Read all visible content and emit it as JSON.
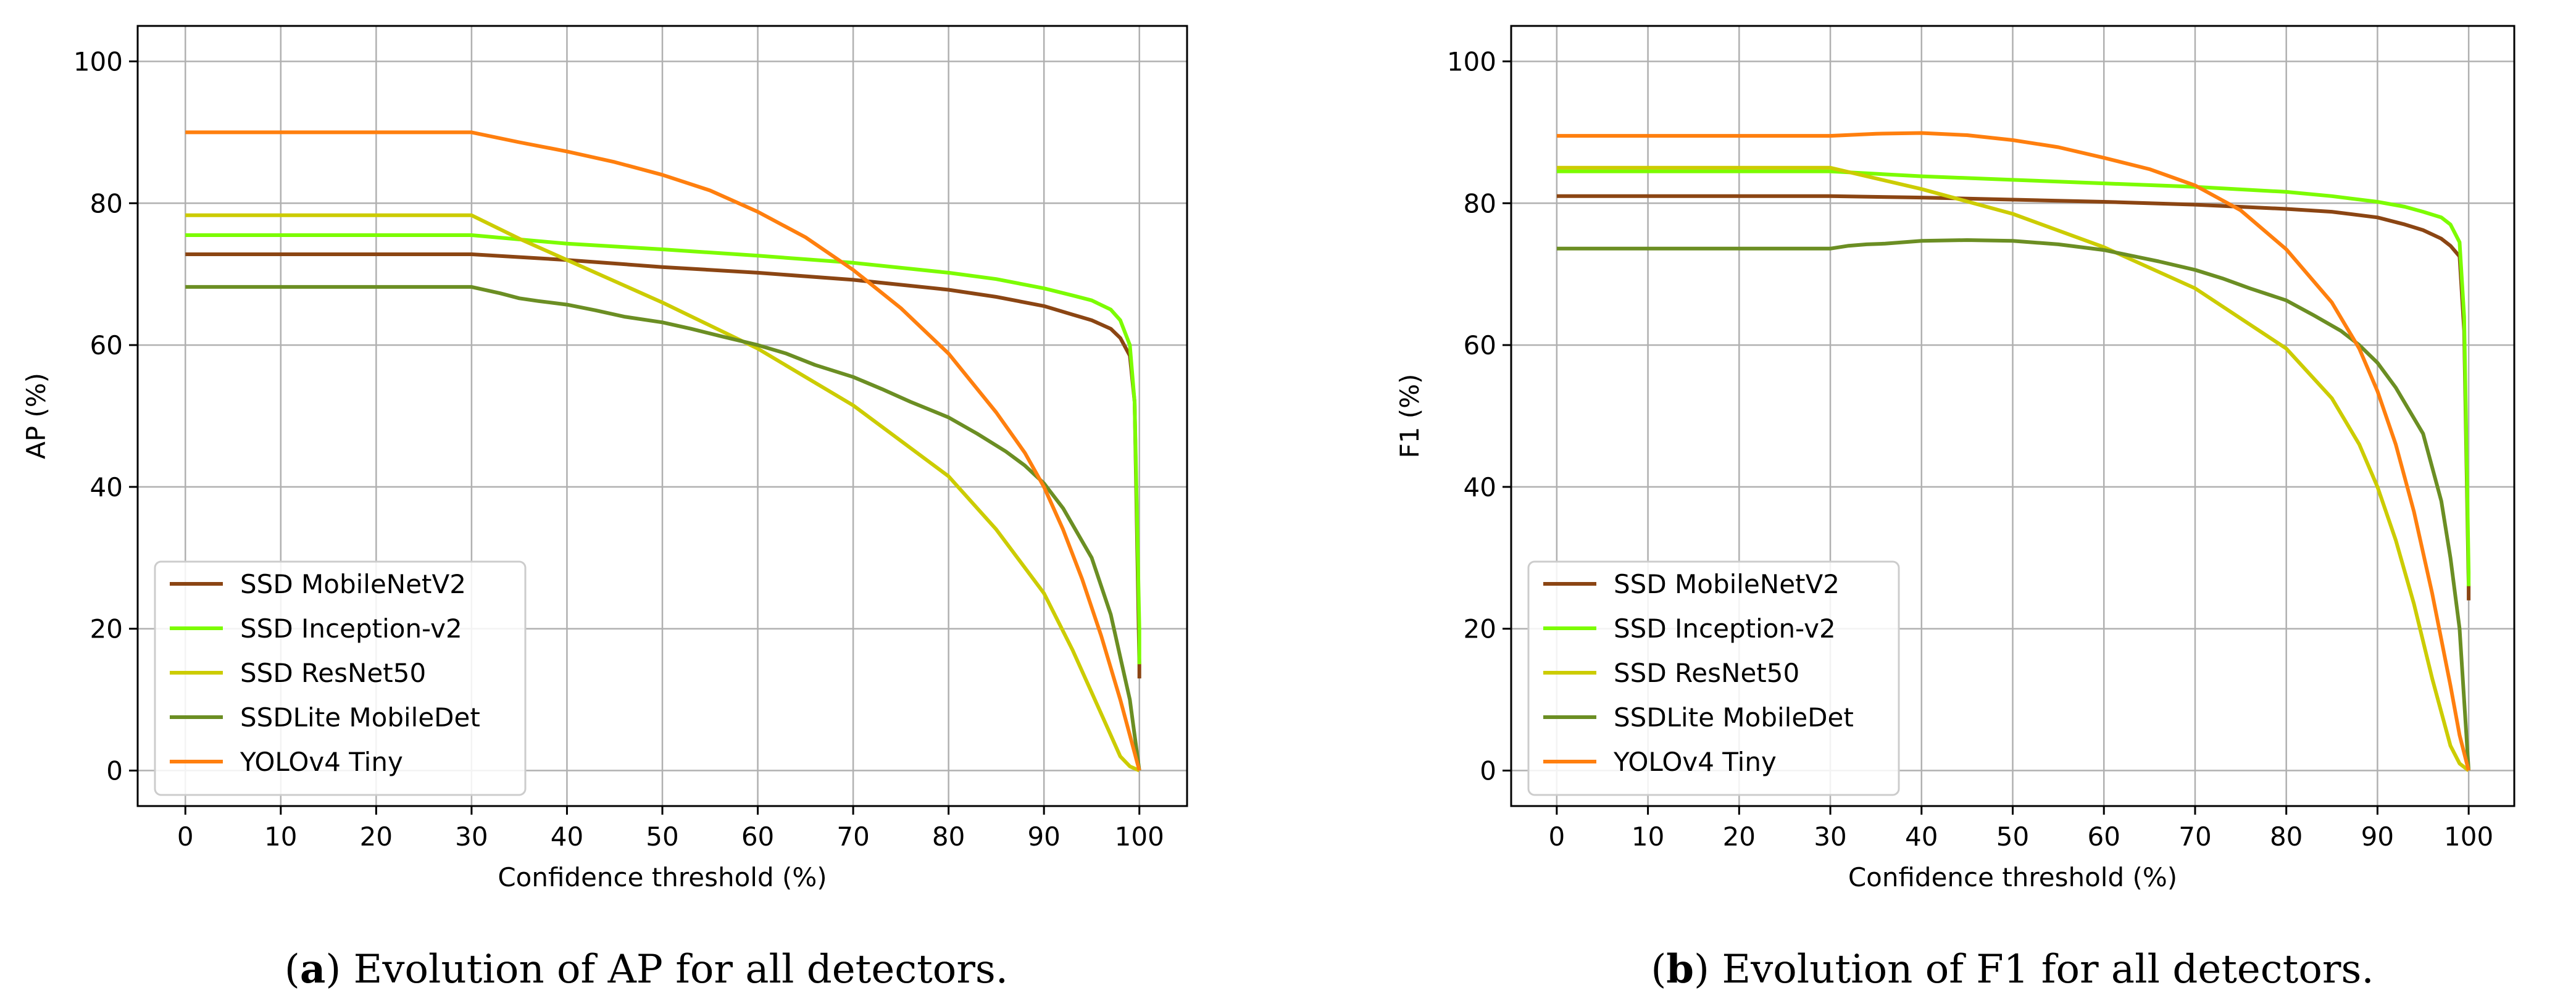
{
  "chart_data": [
    {
      "type": "line",
      "ylabel": "AP (%)",
      "xlabel": "Confidence threshold (%)",
      "xlim": [
        -5,
        105
      ],
      "ylim": [
        -5,
        105
      ],
      "xticks": [
        0,
        10,
        20,
        30,
        40,
        50,
        60,
        70,
        80,
        90,
        100
      ],
      "yticks": [
        0,
        20,
        40,
        60,
        80,
        100
      ],
      "grid": true,
      "legend_position": "lower-left",
      "caption_letter": "a",
      "caption_open": "(",
      "caption_close": ")",
      "caption_text": " Evolution of AP for all detectors.",
      "series": [
        {
          "name": "SSD MobileNetV2",
          "color": "#8B4513",
          "x": [
            0,
            30,
            40,
            50,
            60,
            70,
            80,
            85,
            90,
            93,
            95,
            97,
            98,
            99,
            99.5,
            100,
            100
          ],
          "y": [
            72.8,
            72.8,
            72,
            71,
            70.2,
            69.2,
            67.8,
            66.8,
            65.5,
            64.3,
            63.5,
            62.3,
            61,
            58.5,
            52,
            15,
            13
          ]
        },
        {
          "name": "SSD Inception-v2",
          "color": "#7CFC00",
          "x": [
            0,
            30,
            40,
            50,
            60,
            70,
            80,
            85,
            90,
            93,
            95,
            97,
            98,
            99,
            99.5,
            100,
            100
          ],
          "y": [
            75.5,
            75.5,
            74.3,
            73.5,
            72.6,
            71.6,
            70.2,
            69.3,
            68,
            67,
            66.3,
            65,
            63.5,
            60,
            52,
            20,
            15
          ]
        },
        {
          "name": "SSD ResNet50",
          "color": "#CCCC00",
          "x": [
            0,
            30,
            35,
            40,
            50,
            60,
            70,
            80,
            85,
            90,
            93,
            95,
            97,
            98,
            99,
            100
          ],
          "y": [
            78.3,
            78.3,
            75,
            72,
            66,
            59.5,
            51.5,
            41.5,
            34,
            25,
            17,
            11,
            5,
            2,
            0.6,
            0
          ]
        },
        {
          "name": "SSDLite MobileDet",
          "color": "#6B8E23",
          "x": [
            0,
            30,
            33,
            35,
            37,
            40,
            43,
            46,
            50,
            53,
            56,
            60,
            63,
            66,
            70,
            73,
            76,
            80,
            83,
            86,
            88,
            90,
            92,
            95,
            97,
            98,
            99,
            100
          ],
          "y": [
            68.2,
            68.2,
            67.3,
            66.6,
            66.2,
            65.7,
            64.9,
            64,
            63.2,
            62.3,
            61.3,
            60,
            58.8,
            57.2,
            55.5,
            53.8,
            52,
            49.8,
            47.5,
            45,
            43,
            40.5,
            37,
            30,
            22,
            16,
            10,
            0
          ]
        },
        {
          "name": "YOLOv4 Tiny",
          "color": "#FF7F0E",
          "x": [
            0,
            30,
            35,
            40,
            45,
            50,
            55,
            60,
            65,
            70,
            75,
            80,
            85,
            88,
            90,
            92,
            94,
            96,
            98,
            99,
            100
          ],
          "y": [
            90,
            90,
            88.6,
            87.3,
            85.8,
            84,
            81.8,
            78.8,
            75.2,
            70.6,
            65.2,
            58.8,
            50.5,
            44.8,
            40,
            34,
            27,
            19,
            10,
            5,
            0
          ]
        }
      ]
    },
    {
      "type": "line",
      "ylabel": "F1 (%)",
      "xlabel": "Confidence threshold (%)",
      "xlim": [
        -5,
        105
      ],
      "ylim": [
        -5,
        105
      ],
      "xticks": [
        0,
        10,
        20,
        30,
        40,
        50,
        60,
        70,
        80,
        90,
        100
      ],
      "yticks": [
        0,
        20,
        40,
        60,
        80,
        100
      ],
      "grid": true,
      "legend_position": "lower-left",
      "caption_letter": "b",
      "caption_open": "(",
      "caption_close": ")",
      "caption_text": " Evolution of F1 for all detectors.",
      "series": [
        {
          "name": "SSD MobileNetV2",
          "color": "#8B4513",
          "x": [
            0,
            30,
            40,
            50,
            60,
            70,
            80,
            85,
            90,
            93,
            95,
            97,
            98,
            99,
            99.5,
            100,
            100
          ],
          "y": [
            81,
            81,
            80.8,
            80.5,
            80.2,
            79.8,
            79.2,
            78.8,
            78,
            77,
            76.2,
            75,
            74,
            72.5,
            62,
            26,
            24
          ]
        },
        {
          "name": "SSD Inception-v2",
          "color": "#7CFC00",
          "x": [
            0,
            30,
            40,
            50,
            60,
            70,
            80,
            85,
            90,
            93,
            95,
            97,
            98,
            99,
            99.5,
            100,
            100
          ],
          "y": [
            84.5,
            84.5,
            83.8,
            83.3,
            82.8,
            82.3,
            81.6,
            81,
            80.2,
            79.5,
            78.8,
            78,
            77,
            74.5,
            64,
            28,
            26
          ]
        },
        {
          "name": "SSD ResNet50",
          "color": "#CCCC00",
          "x": [
            0,
            30,
            40,
            50,
            60,
            70,
            80,
            85,
            88,
            90,
            92,
            94,
            96,
            98,
            99,
            100
          ],
          "y": [
            85,
            85,
            82,
            78.5,
            73.8,
            68,
            59.5,
            52.5,
            46,
            40,
            32.5,
            23.5,
            13,
            3.5,
            1,
            0
          ]
        },
        {
          "name": "SSDLite MobileDet",
          "color": "#6B8E23",
          "x": [
            0,
            30,
            32,
            34,
            36,
            38,
            40,
            45,
            50,
            55,
            60,
            63,
            66,
            70,
            73,
            76,
            80,
            83,
            86,
            88,
            90,
            92,
            95,
            97,
            98,
            99,
            100
          ],
          "y": [
            73.6,
            73.6,
            74,
            74.2,
            74.3,
            74.5,
            74.7,
            74.8,
            74.7,
            74.2,
            73.4,
            72.6,
            71.8,
            70.6,
            69.4,
            68,
            66.3,
            64.2,
            62,
            60,
            57.5,
            54,
            47.5,
            38,
            30,
            20,
            0
          ]
        },
        {
          "name": "YOLOv4 Tiny",
          "color": "#FF7F0E",
          "x": [
            0,
            30,
            35,
            40,
            45,
            50,
            55,
            60,
            65,
            70,
            75,
            80,
            85,
            88,
            90,
            92,
            94,
            96,
            98,
            99,
            100
          ],
          "y": [
            89.5,
            89.5,
            89.8,
            89.9,
            89.6,
            88.9,
            87.9,
            86.4,
            84.8,
            82.5,
            79,
            73.5,
            66,
            59.5,
            53.5,
            46,
            36.5,
            25,
            12,
            5,
            0
          ]
        }
      ]
    }
  ]
}
